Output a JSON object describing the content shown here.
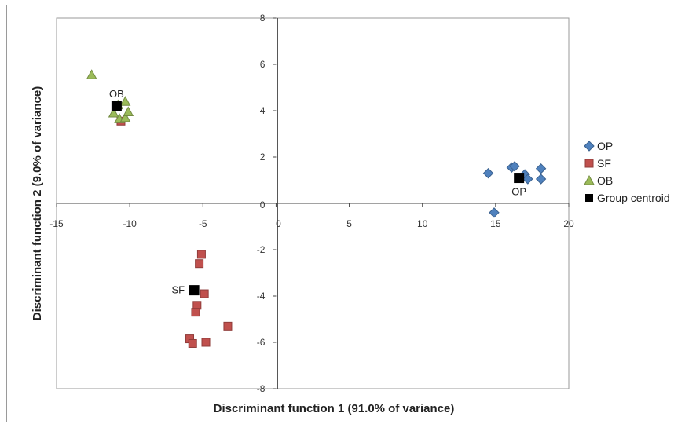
{
  "chart_data": {
    "type": "scatter",
    "xlabel": "Discriminant function 1 (91.0% of variance)",
    "ylabel": "Discriminant function 2 (9.0% of variance)",
    "xlim": [
      -15,
      20
    ],
    "ylim": [
      -8,
      8
    ],
    "x_ticks": [
      -15,
      -10,
      -5,
      0,
      5,
      10,
      15,
      20
    ],
    "y_ticks": [
      -8,
      -6,
      -4,
      -2,
      0,
      2,
      4,
      6,
      8
    ],
    "grid": false,
    "legend_position": "right",
    "series": [
      {
        "name": "OP",
        "marker": "diamond",
        "color": "#4f81bd",
        "points": [
          [
            14.5,
            1.3
          ],
          [
            16.1,
            1.55
          ],
          [
            16.3,
            1.6
          ],
          [
            17.0,
            1.25
          ],
          [
            17.2,
            1.05
          ],
          [
            18.1,
            1.5
          ],
          [
            18.1,
            1.05
          ],
          [
            14.9,
            -0.4
          ]
        ]
      },
      {
        "name": "SF",
        "marker": "square",
        "color": "#c0504d",
        "points": [
          [
            -10.6,
            3.55
          ],
          [
            -5.1,
            -2.2
          ],
          [
            -5.25,
            -2.6
          ],
          [
            -4.9,
            -3.9
          ],
          [
            -5.4,
            -4.4
          ],
          [
            -5.5,
            -4.7
          ],
          [
            -3.3,
            -5.3
          ],
          [
            -5.9,
            -5.85
          ],
          [
            -5.7,
            -6.05
          ],
          [
            -4.8,
            -6.0
          ]
        ]
      },
      {
        "name": "OB",
        "marker": "triangle",
        "color": "#9bbb59",
        "points": [
          [
            -12.6,
            5.55
          ],
          [
            -11.1,
            3.9
          ],
          [
            -10.7,
            3.65
          ],
          [
            -10.3,
            3.7
          ],
          [
            -10.1,
            3.95
          ],
          [
            -10.3,
            4.4
          ],
          [
            -10.8,
            4.25
          ]
        ]
      },
      {
        "name": "Group centroid",
        "marker": "square-large",
        "color": "#000000",
        "points": [
          [
            -10.9,
            4.2
          ],
          [
            -5.6,
            -3.75
          ],
          [
            16.6,
            1.1
          ]
        ]
      }
    ],
    "annotations": [
      {
        "text": "OB",
        "x": -10.9,
        "y": 4.2,
        "anchor": "above"
      },
      {
        "text": "SF",
        "x": -5.6,
        "y": -3.75,
        "anchor": "left"
      },
      {
        "text": "OP",
        "x": 16.6,
        "y": 1.1,
        "anchor": "below"
      }
    ]
  }
}
